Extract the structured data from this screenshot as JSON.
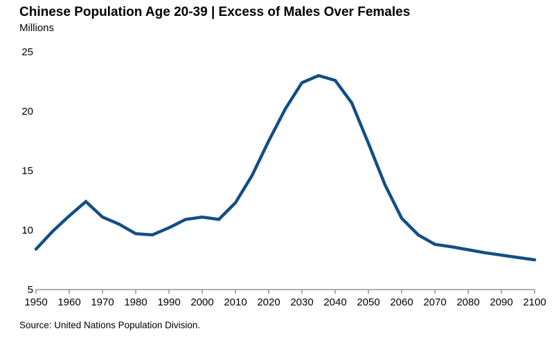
{
  "chart_data": {
    "type": "line",
    "title": "Chinese Population Age 20-39 | Excess of Males Over Females",
    "subtitle": "Millions",
    "source": "Source: United Nations Population Division.",
    "series_name": "Excess of males over females",
    "x": [
      1950,
      1955,
      1960,
      1965,
      1970,
      1975,
      1980,
      1985,
      1990,
      1995,
      2000,
      2005,
      2010,
      2015,
      2020,
      2025,
      2030,
      2035,
      2040,
      2045,
      2050,
      2055,
      2060,
      2065,
      2070,
      2075,
      2080,
      2085,
      2090,
      2095,
      2100
    ],
    "values": [
      8.4,
      9.9,
      11.2,
      12.4,
      11.1,
      10.5,
      9.7,
      9.6,
      10.2,
      10.9,
      11.1,
      10.9,
      12.3,
      14.6,
      17.5,
      20.2,
      22.4,
      23.0,
      22.6,
      20.7,
      17.3,
      13.8,
      11.0,
      9.6,
      8.8,
      8.6,
      8.35,
      8.1,
      7.9,
      7.7,
      7.5
    ],
    "xlim": [
      1950,
      2100
    ],
    "ylim": [
      5,
      25
    ],
    "xticks": [
      1950,
      1960,
      1970,
      1980,
      1990,
      2000,
      2010,
      2020,
      2030,
      2040,
      2050,
      2060,
      2070,
      2080,
      2090,
      2100
    ],
    "yticks": [
      5,
      10,
      15,
      20,
      25
    ],
    "xlabel": "",
    "ylabel": "",
    "grid": "off",
    "legend": "none",
    "line_color": "#124f85",
    "axis_color": "#808080",
    "tick_label_color": "#000000"
  }
}
